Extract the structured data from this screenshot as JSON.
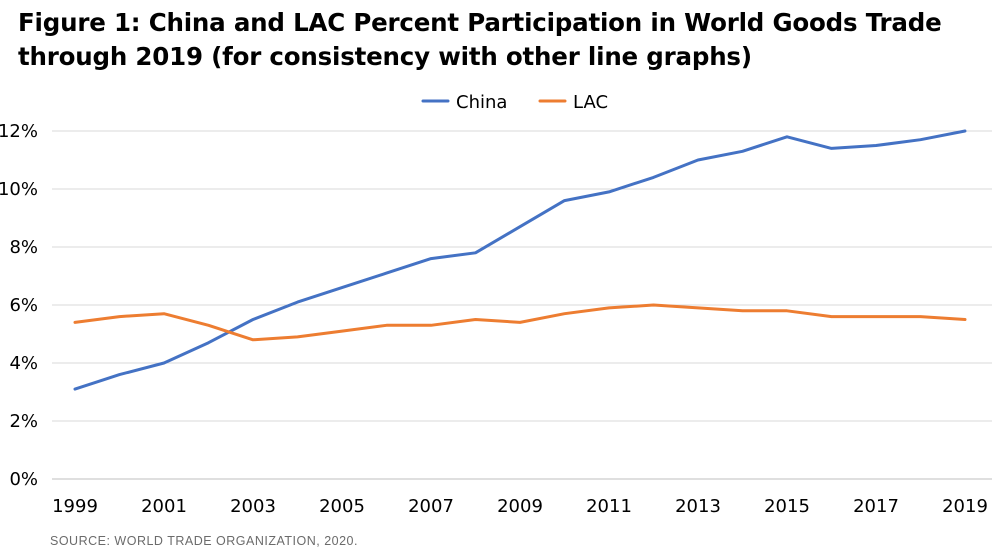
{
  "header": {
    "title_line1": "Figure 1: China and LAC Percent Participation in World Goods Trade",
    "title_line2": "through 2019 (for consistency with other line graphs)"
  },
  "footer": {
    "source": "SOURCE: WORLD TRADE ORGANIZATION, 2020."
  },
  "chart_data": {
    "type": "line",
    "title": "Figure 1: China and LAC Percent Participation in World Goods Trade through 2019 (for consistency with other line graphs)",
    "xlabel": "",
    "ylabel": "",
    "x": [
      1999,
      2000,
      2001,
      2002,
      2003,
      2004,
      2005,
      2006,
      2007,
      2008,
      2009,
      2010,
      2011,
      2012,
      2013,
      2014,
      2015,
      2016,
      2017,
      2018,
      2019
    ],
    "x_tick_labels": [
      "1999",
      "2001",
      "2003",
      "2005",
      "2007",
      "2009",
      "2011",
      "2013",
      "2015",
      "2017",
      "2019"
    ],
    "ylim": [
      0,
      12
    ],
    "y_ticks": [
      0,
      2,
      4,
      6,
      8,
      10,
      12
    ],
    "y_tick_labels": [
      "0%",
      "2%",
      "4%",
      "6%",
      "8%",
      "10%",
      "12%"
    ],
    "grid": true,
    "legend_position": "top-center",
    "series": [
      {
        "name": "China",
        "color": "#4472C4",
        "values": [
          3.1,
          3.6,
          4.0,
          4.7,
          5.5,
          6.1,
          6.6,
          7.1,
          7.6,
          7.8,
          8.7,
          9.6,
          9.9,
          10.4,
          11.0,
          11.3,
          11.8,
          11.4,
          11.5,
          11.7,
          12.0
        ]
      },
      {
        "name": "LAC",
        "color": "#ED7D31",
        "values": [
          5.4,
          5.6,
          5.7,
          5.3,
          4.8,
          4.9,
          5.1,
          5.3,
          5.3,
          5.5,
          5.4,
          5.7,
          5.9,
          6.0,
          5.9,
          5.8,
          5.8,
          5.6,
          5.6,
          5.6,
          5.5
        ]
      }
    ]
  }
}
